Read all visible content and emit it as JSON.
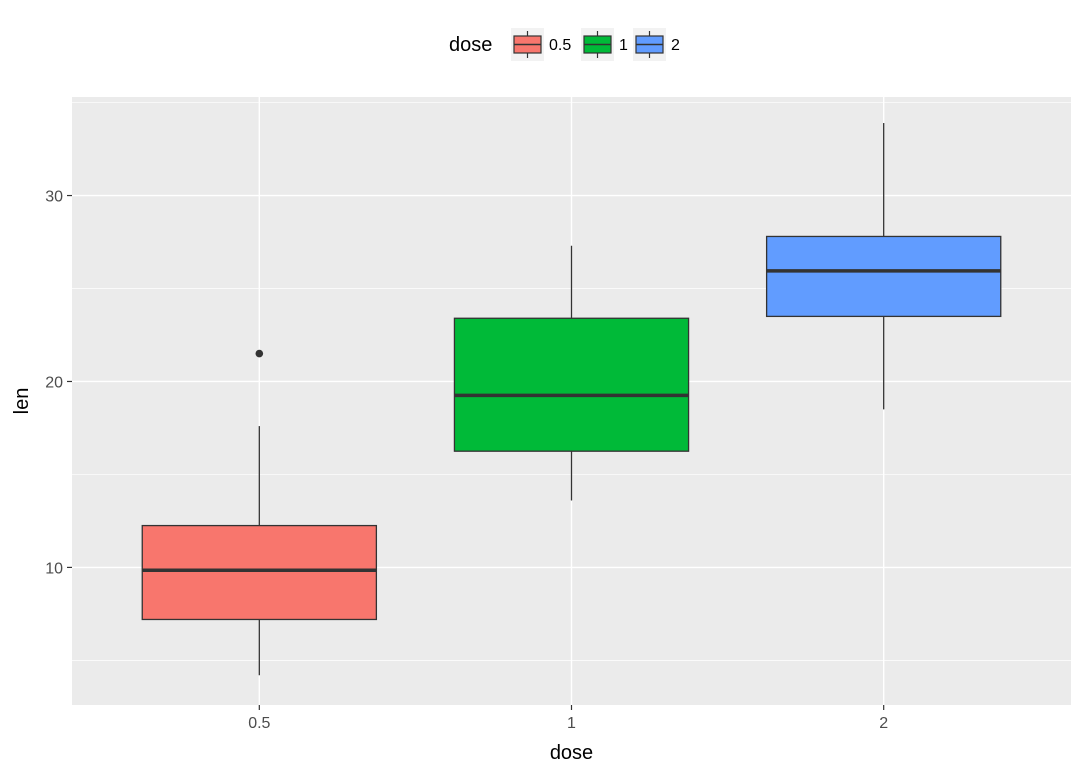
{
  "chart_data": {
    "type": "box",
    "xlabel": "dose",
    "ylabel": "len",
    "categories": [
      "0.5",
      "1",
      "2"
    ],
    "ylim": [
      2.6,
      35.3
    ],
    "yticks": [
      10,
      20,
      30
    ],
    "grid": true,
    "legend": {
      "title": "dose",
      "position": "top",
      "entries": [
        "0.5",
        "1",
        "2"
      ]
    },
    "series": [
      {
        "category": "0.5",
        "color": "#F8766D",
        "whisker_low": 4.2,
        "q1": 7.2,
        "median": 9.85,
        "q3": 12.25,
        "whisker_high": 17.6,
        "outliers": [
          21.5
        ]
      },
      {
        "category": "1",
        "color": "#00BA38",
        "whisker_low": 13.6,
        "q1": 16.25,
        "median": 19.25,
        "q3": 23.4,
        "whisker_high": 27.3,
        "outliers": []
      },
      {
        "category": "2",
        "color": "#619CFF",
        "whisker_low": 18.5,
        "q1": 23.5,
        "median": 25.95,
        "q3": 27.8,
        "whisker_high": 33.9,
        "outliers": []
      }
    ]
  }
}
